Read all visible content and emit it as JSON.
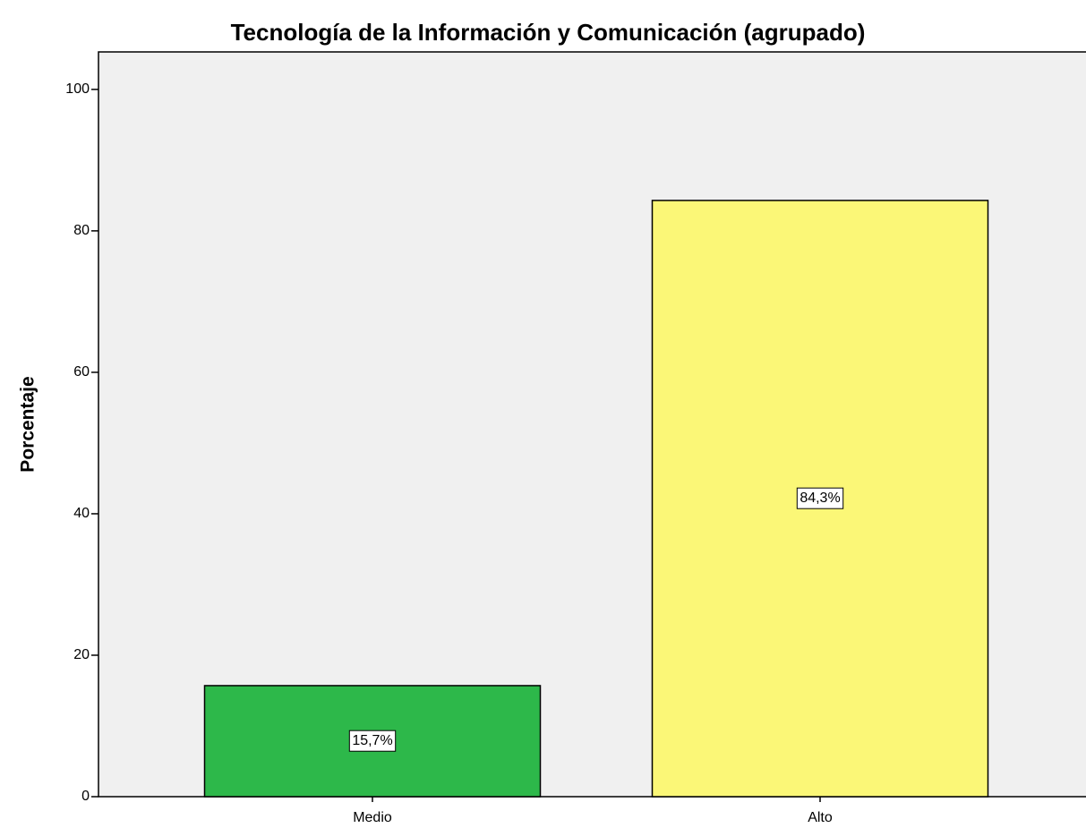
{
  "chart_data": {
    "type": "bar",
    "title": "Tecnología de la Información y Comunicación (agrupado)",
    "y_label": "Porcentaje",
    "categories": [
      "Medio",
      "Alto"
    ],
    "values": [
      15.7,
      84.3
    ],
    "value_labels": [
      "15,7%",
      "84,3%"
    ],
    "colors": [
      "#2db84a",
      "#fbf777"
    ],
    "ylim": [
      0,
      105.3
    ],
    "yticks": [
      0,
      20,
      40,
      60,
      80,
      100
    ],
    "grid": false
  }
}
